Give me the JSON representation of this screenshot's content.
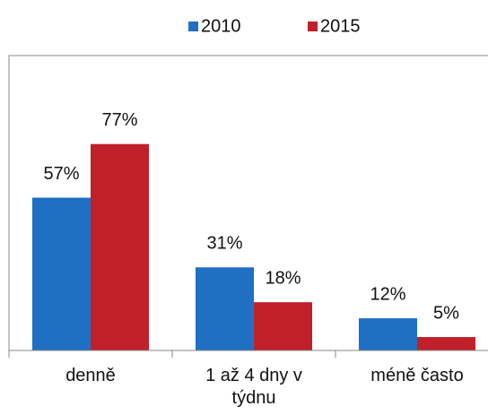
{
  "chart_data": {
    "type": "bar",
    "categories": [
      "denně",
      "1 až 4 dny v týdnu",
      "méně často"
    ],
    "series": [
      {
        "name": "2010",
        "color": "#1f6fc5",
        "values": [
          57,
          31,
          12
        ],
        "value_labels": [
          "57%",
          "31%",
          "12%"
        ]
      },
      {
        "name": "2015",
        "color": "#c0202a",
        "values": [
          77,
          18,
          5
        ],
        "value_labels": [
          "77%",
          "18%",
          "5%"
        ]
      }
    ],
    "ylim": [
      0,
      110
    ],
    "legend": "top"
  }
}
